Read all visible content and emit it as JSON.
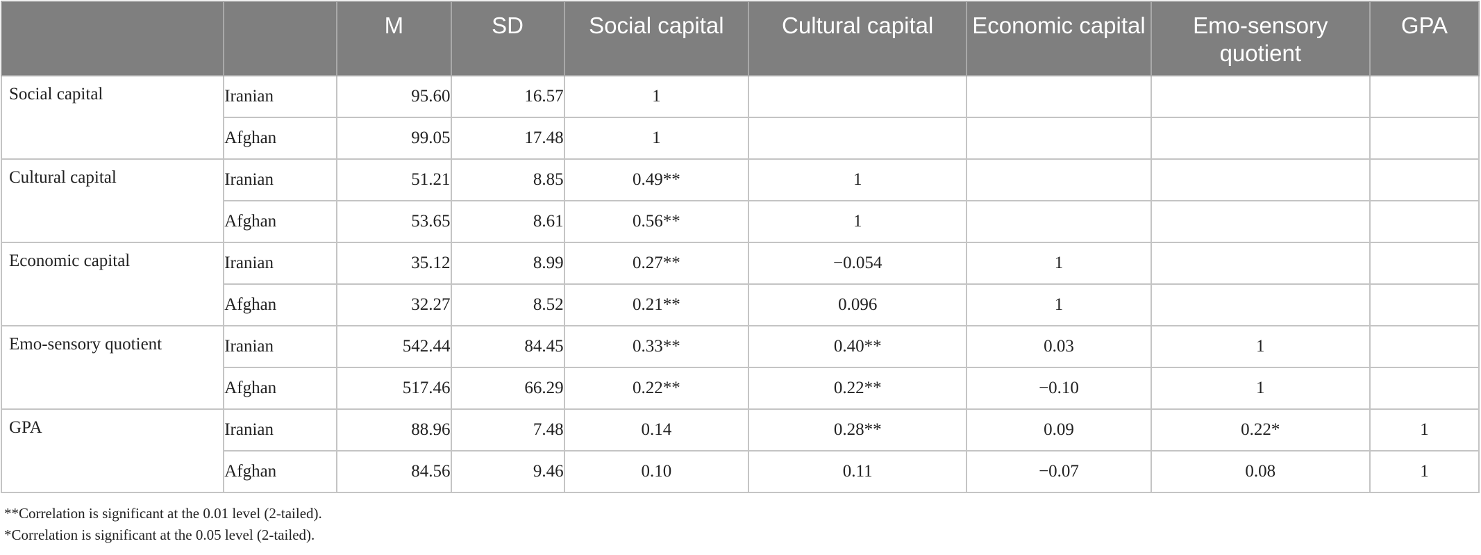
{
  "table": {
    "headers": [
      "",
      "",
      "M",
      "SD",
      "Social capital",
      "Cultural capital",
      "Economic capital",
      "Emo-sensory quotient",
      "GPA"
    ],
    "rows": [
      {
        "variable": "Social capital",
        "group": "Iranian",
        "m": "95.60",
        "sd": "16.57",
        "social": "1",
        "cultural": "",
        "economic": "",
        "emo": "",
        "gpa": ""
      },
      {
        "variable": "",
        "group": "Afghan",
        "m": "99.05",
        "sd": "17.48",
        "social": "1",
        "cultural": "",
        "economic": "",
        "emo": "",
        "gpa": ""
      },
      {
        "variable": "Cultural capital",
        "group": "Iranian",
        "m": "51.21",
        "sd": "8.85",
        "social": "0.49**",
        "cultural": "1",
        "economic": "",
        "emo": "",
        "gpa": ""
      },
      {
        "variable": "",
        "group": "Afghan",
        "m": "53.65",
        "sd": "8.61",
        "social": "0.56**",
        "cultural": "1",
        "economic": "",
        "emo": "",
        "gpa": ""
      },
      {
        "variable": "Economic capital",
        "group": "Iranian",
        "m": "35.12",
        "sd": "8.99",
        "social": "0.27**",
        "cultural": "−0.054",
        "economic": "1",
        "emo": "",
        "gpa": ""
      },
      {
        "variable": "",
        "group": "Afghan",
        "m": "32.27",
        "sd": "8.52",
        "social": "0.21**",
        "cultural": "0.096",
        "economic": "1",
        "emo": "",
        "gpa": ""
      },
      {
        "variable": "Emo-sensory quotient",
        "group": "Iranian",
        "m": "542.44",
        "sd": "84.45",
        "social": "0.33**",
        "cultural": "0.40**",
        "economic": "0.03",
        "emo": "1",
        "gpa": ""
      },
      {
        "variable": "",
        "group": "Afghan",
        "m": "517.46",
        "sd": "66.29",
        "social": "0.22**",
        "cultural": "0.22**",
        "economic": "−0.10",
        "emo": "1",
        "gpa": ""
      },
      {
        "variable": "GPA",
        "group": "Iranian",
        "m": "88.96",
        "sd": "7.48",
        "social": "0.14",
        "cultural": "0.28**",
        "economic": "0.09",
        "emo": "0.22*",
        "gpa": "1"
      },
      {
        "variable": "",
        "group": "Afghan",
        "m": "84.56",
        "sd": "9.46",
        "social": "0.10",
        "cultural": "0.11",
        "economic": "−0.07",
        "emo": "0.08",
        "gpa": "1"
      }
    ]
  },
  "notes": [
    "**Correlation is significant at the 0.01 level (2-tailed).",
    "*Correlation is significant at the 0.05 level (2-tailed)."
  ]
}
